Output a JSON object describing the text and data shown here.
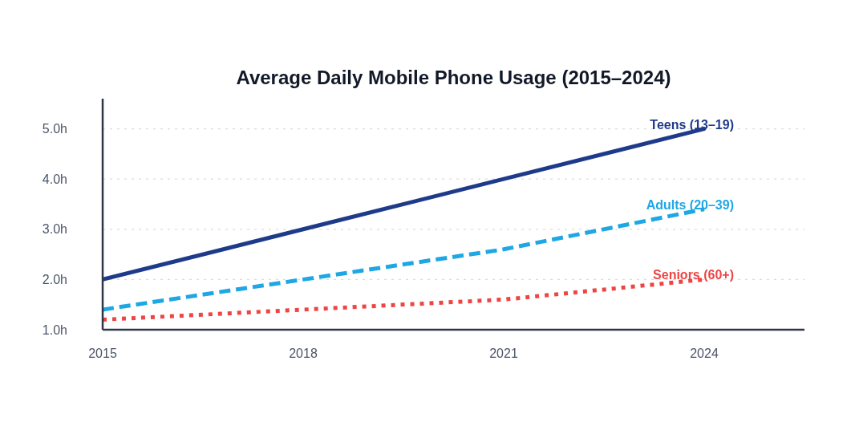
{
  "chart_data": {
    "type": "line",
    "title": "Average Daily Mobile Phone Usage (2015–2024)",
    "x": [
      2015,
      2018,
      2021,
      2024
    ],
    "series": [
      {
        "name": "Teens (13–19)",
        "color": "#1e3a8a",
        "values": [
          2.0,
          3.0,
          4.0,
          5.0
        ],
        "line_style": "solid"
      },
      {
        "name": "Adults (20–39)",
        "color": "#1ea7e4",
        "values": [
          1.4,
          2.0,
          2.6,
          3.4
        ],
        "line_style": "dashed"
      },
      {
        "name": "Seniors (60+)",
        "color": "#ef4444",
        "values": [
          1.2,
          1.4,
          1.6,
          2.0
        ],
        "line_style": "dotted"
      }
    ],
    "xlim": [
      2015,
      2025.5
    ],
    "xticks": [
      2015,
      2018,
      2021,
      2024
    ],
    "ylim": [
      1,
      5.6
    ],
    "yticks": [
      {
        "value": 1,
        "label": "1.0h"
      },
      {
        "value": 2,
        "label": "2.0h"
      },
      {
        "value": 3,
        "label": "3.0h"
      },
      {
        "value": 4,
        "label": "4.0h"
      },
      {
        "value": 5,
        "label": "5.0h"
      }
    ],
    "grid": "y"
  }
}
